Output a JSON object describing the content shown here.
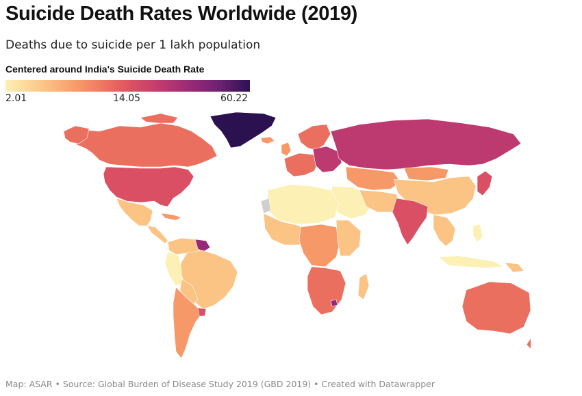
{
  "header": {
    "title": "Suicide Death Rates Worldwide (2019)",
    "subtitle": "Deaths due to suicide per 1 lakh population"
  },
  "legend": {
    "title": "Centered around India's Suicide Death Rate",
    "min_label": "2.01",
    "mid_label": "14.05",
    "max_label": "60.22",
    "colors": [
      "#fcf0b4",
      "#fbc384",
      "#f69868",
      "#eb6f5f",
      "#da4f63",
      "#bd3a70",
      "#962a76",
      "#6b2072",
      "#2c1151"
    ]
  },
  "footer": {
    "text": "Map: ASAR • Source: Global Burden of Disease Study 2019 (GBD 2019) • Created with Datawrapper"
  }
}
